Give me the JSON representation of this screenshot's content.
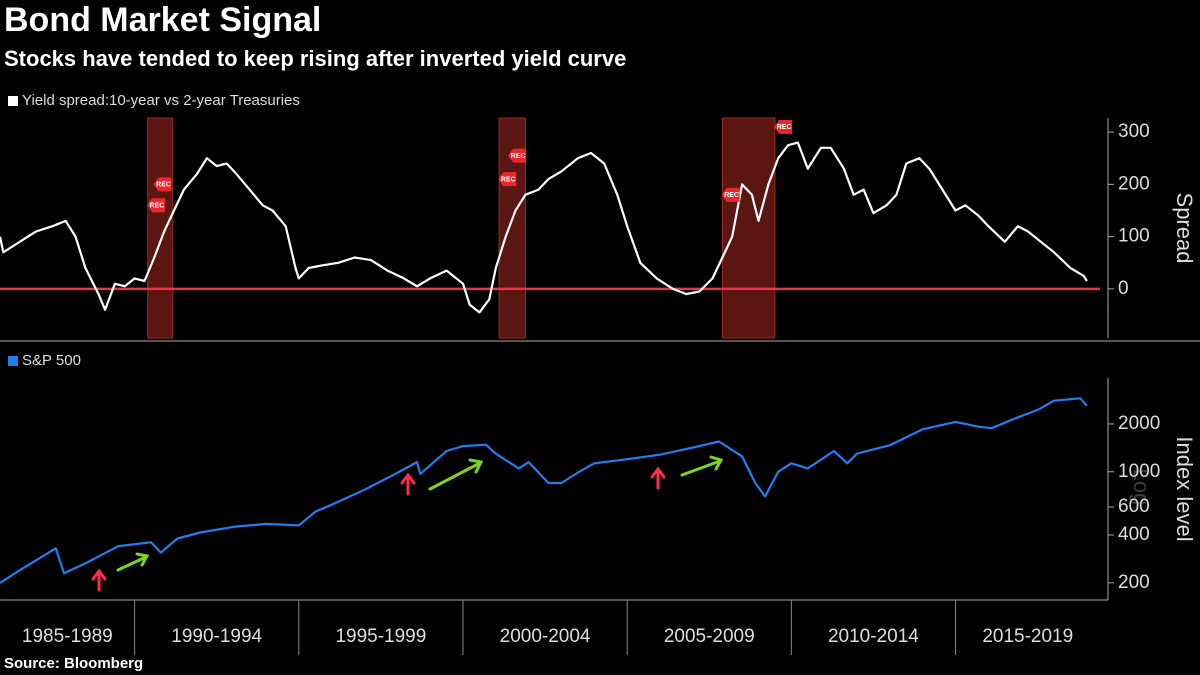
{
  "source": "Source: Bloomberg",
  "chart_data": [
    {
      "type": "line",
      "title": "Bond Market Signal",
      "subtitle": "Stocks have tended to keep rising after inverted yield curve",
      "y_axis_label": "Spread",
      "xlim": [
        1985.9,
        2019.4
      ],
      "ylim": [
        -94,
        327
      ],
      "yticks": [
        0,
        100,
        200,
        300
      ],
      "reference_line": {
        "value": 0,
        "color": "#e8334a"
      },
      "shaded_ranges": [
        [
          1990.4,
          1991.15
        ],
        [
          2001.1,
          2001.9
        ],
        [
          2007.9,
          2009.5
        ]
      ],
      "annotations": [
        {
          "text": "REC",
          "x": 1990.85,
          "y": 200
        },
        {
          "text": "REC",
          "x": 1990.65,
          "y": 160
        },
        {
          "text": "REC",
          "x": 2001.65,
          "y": 255
        },
        {
          "text": "REC",
          "x": 2001.35,
          "y": 210
        },
        {
          "text": "REC",
          "x": 2008.15,
          "y": 180
        },
        {
          "text": "REC",
          "x": 2009.75,
          "y": 310
        }
      ],
      "series": [
        {
          "name": "Yield spread:10-year vs 2-year Treasuries",
          "color": "#ffffff",
          "x": [
            1985.9,
            1986.0,
            1986.5,
            1987.0,
            1987.5,
            1987.9,
            1988.2,
            1988.5,
            1988.9,
            1989.1,
            1989.4,
            1989.7,
            1990.0,
            1990.3,
            1990.6,
            1990.9,
            1991.2,
            1991.5,
            1991.9,
            1992.2,
            1992.5,
            1992.8,
            1993.1,
            1993.5,
            1993.9,
            1994.2,
            1994.6,
            1994.9,
            1995.0,
            1995.3,
            1995.7,
            1996.2,
            1996.7,
            1997.2,
            1997.7,
            1998.2,
            1998.6,
            1999.0,
            1999.5,
            2000.0,
            2000.2,
            2000.5,
            2000.8,
            2001.0,
            2001.3,
            2001.6,
            2001.9,
            2002.3,
            2002.6,
            2003.0,
            2003.5,
            2003.9,
            2004.3,
            2004.7,
            2005.0,
            2005.4,
            2005.9,
            2006.4,
            2006.8,
            2007.2,
            2007.6,
            2007.9,
            2008.2,
            2008.5,
            2008.8,
            2009.0,
            2009.3,
            2009.6,
            2009.9,
            2010.2,
            2010.5,
            2010.9,
            2011.2,
            2011.6,
            2011.9,
            2012.2,
            2012.5,
            2012.9,
            2013.2,
            2013.5,
            2013.9,
            2014.2,
            2014.6,
            2015.0,
            2015.3,
            2015.7,
            2016.0,
            2016.5,
            2016.9,
            2017.2,
            2017.6,
            2018.0,
            2018.5,
            2018.9,
            2019.0
          ],
          "values": [
            100,
            70,
            90,
            110,
            120,
            130,
            100,
            40,
            -10,
            -40,
            10,
            5,
            20,
            15,
            60,
            110,
            150,
            190,
            220,
            250,
            235,
            240,
            220,
            190,
            160,
            150,
            120,
            40,
            20,
            40,
            45,
            50,
            60,
            55,
            35,
            20,
            5,
            20,
            35,
            10,
            -30,
            -45,
            -20,
            40,
            100,
            150,
            180,
            190,
            210,
            225,
            250,
            260,
            240,
            180,
            120,
            50,
            20,
            0,
            -10,
            -5,
            20,
            60,
            100,
            200,
            180,
            130,
            200,
            250,
            275,
            280,
            230,
            270,
            270,
            230,
            180,
            190,
            145,
            160,
            180,
            240,
            250,
            230,
            190,
            150,
            160,
            140,
            120,
            90,
            120,
            110,
            90,
            70,
            40,
            25,
            15
          ]
        }
      ]
    },
    {
      "type": "line",
      "y_axis_label": "Index level",
      "scale_label": "Log",
      "log_scale": true,
      "xlim": [
        1985.9,
        2019.4
      ],
      "ylim": [
        156,
        3890
      ],
      "yticks": [
        200,
        400,
        600,
        1000,
        2000
      ],
      "x_categories": [
        "1985-1989",
        "1990-1994",
        "1995-1999",
        "2000-2004",
        "2005-2009",
        "2010-2014",
        "2015-2019"
      ],
      "x_category_edges": [
        1985,
        1990,
        1995,
        2000,
        2005,
        2010,
        2015,
        2020
      ],
      "series": [
        {
          "name": "S&P 500",
          "color": "#1f7ff0",
          "x": [
            1985.9,
            1986.5,
            1987.6,
            1987.85,
            1988.5,
            1989.5,
            1990.5,
            1990.8,
            1991.3,
            1992.0,
            1993.0,
            1994.0,
            1995.0,
            1995.5,
            1996.0,
            1997.0,
            1997.9,
            1998.6,
            1998.7,
            1999.5,
            2000.0,
            2000.7,
            2001.0,
            2001.7,
            2002.0,
            2002.6,
            2003.0,
            2003.5,
            2004.0,
            2005.0,
            2006.0,
            2007.0,
            2007.8,
            2008.5,
            2008.9,
            2009.2,
            2009.6,
            2010.0,
            2010.5,
            2011.3,
            2011.7,
            2012.0,
            2013.0,
            2014.0,
            2015.0,
            2015.7,
            2016.1,
            2016.9,
            2017.5,
            2018.0,
            2018.8,
            2019.0
          ],
          "values": [
            200,
            240,
            330,
            230,
            265,
            340,
            360,
            310,
            380,
            415,
            450,
            470,
            460,
            560,
            620,
            770,
            960,
            1150,
            970,
            1350,
            1450,
            1480,
            1300,
            1050,
            1150,
            850,
            850,
            990,
            1130,
            1200,
            1280,
            1420,
            1550,
            1250,
            850,
            700,
            1000,
            1130,
            1050,
            1350,
            1130,
            1300,
            1470,
            1850,
            2060,
            1920,
            1880,
            2200,
            2450,
            2800,
            2900,
            2600
          ]
        }
      ]
    }
  ]
}
